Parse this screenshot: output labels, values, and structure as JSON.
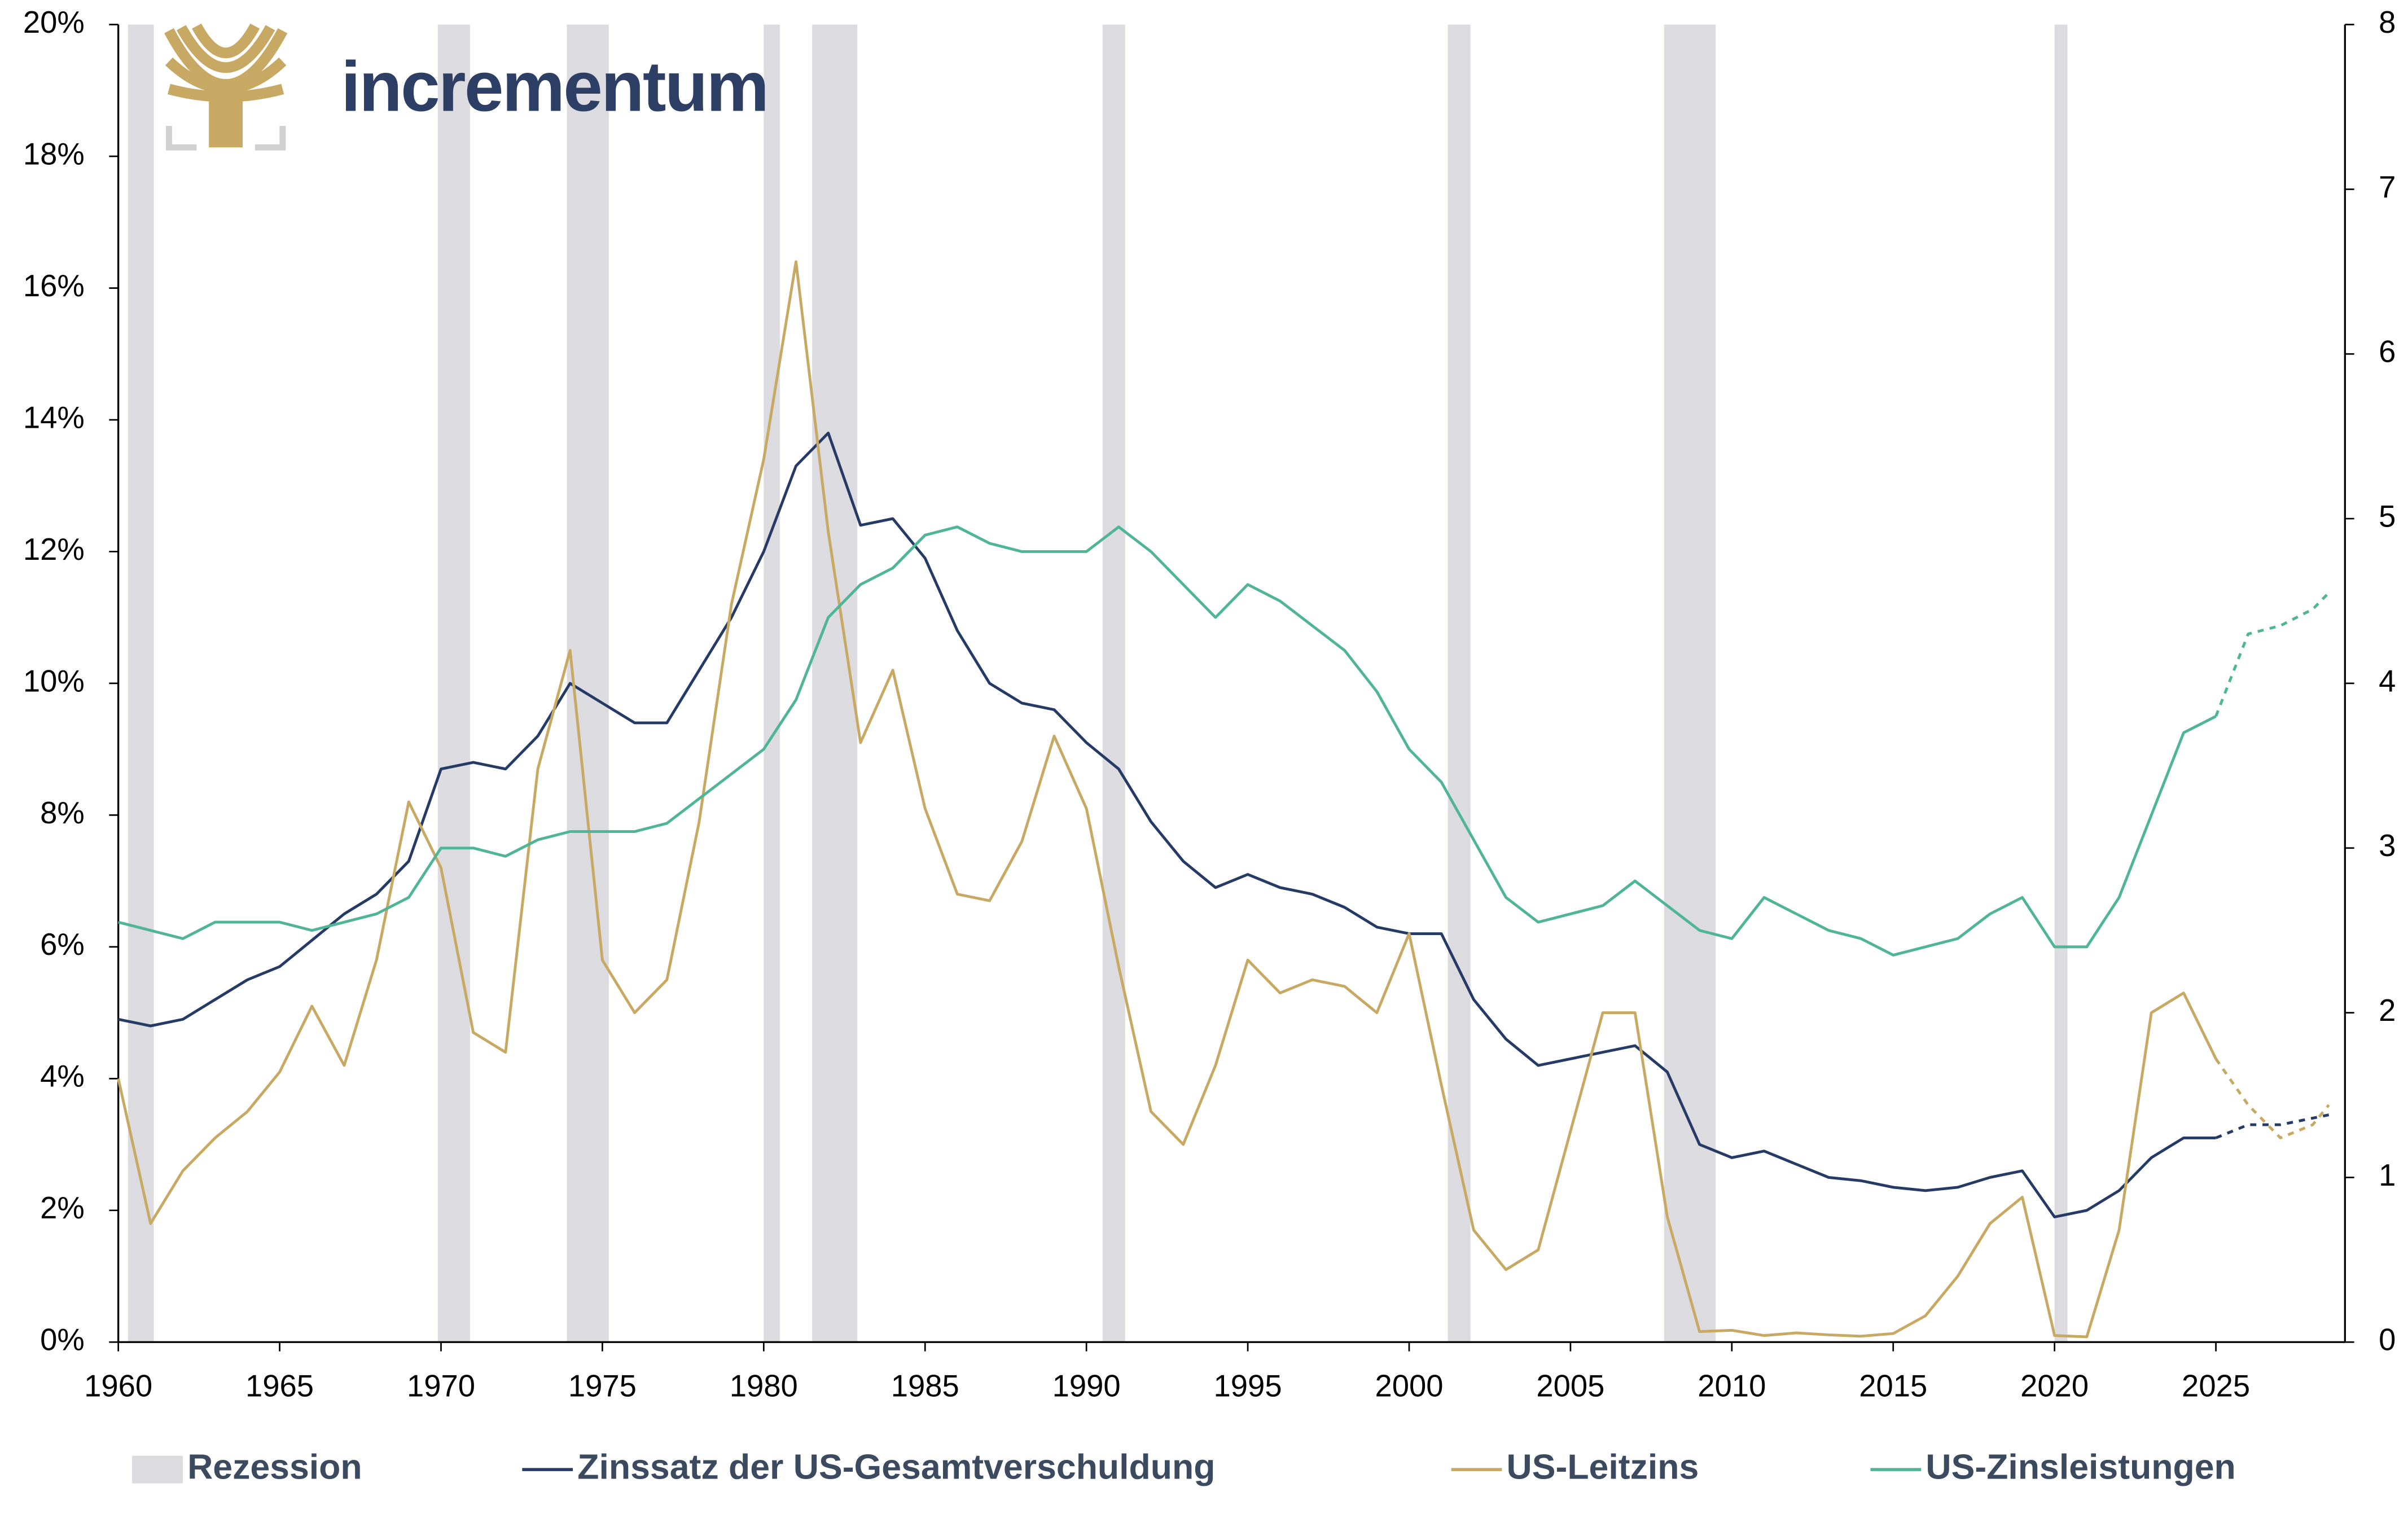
{
  "logo": {
    "text": "incrementum"
  },
  "chart_data": {
    "type": "line",
    "x": [
      1960,
      1961,
      1962,
      1963,
      1964,
      1965,
      1966,
      1967,
      1968,
      1969,
      1970,
      1971,
      1972,
      1973,
      1974,
      1975,
      1976,
      1977,
      1978,
      1979,
      1980,
      1981,
      1982,
      1983,
      1984,
      1985,
      1986,
      1987,
      1988,
      1989,
      1990,
      1991,
      1992,
      1993,
      1994,
      1995,
      1996,
      1997,
      1998,
      1999,
      2000,
      2001,
      2002,
      2003,
      2004,
      2005,
      2006,
      2007,
      2008,
      2009,
      2010,
      2011,
      2012,
      2013,
      2014,
      2015,
      2016,
      2017,
      2018,
      2019,
      2020,
      2021,
      2022,
      2023,
      2024,
      2025,
      2026,
      2027,
      2028,
      2028.5
    ],
    "dash_from": 2025,
    "xlim": [
      1960,
      2029
    ],
    "xticks": [
      1960,
      1965,
      1970,
      1975,
      1980,
      1985,
      1990,
      1995,
      2000,
      2005,
      2010,
      2015,
      2020,
      2025
    ],
    "ylim": [
      0,
      20
    ],
    "yticks": [
      {
        "value": 0,
        "label": "0%"
      },
      {
        "value": 2,
        "label": "2%"
      },
      {
        "value": 4,
        "label": "4%"
      },
      {
        "value": 6,
        "label": "6%"
      },
      {
        "value": 8,
        "label": "8%"
      },
      {
        "value": 10,
        "label": "10%"
      },
      {
        "value": 12,
        "label": "12%"
      },
      {
        "value": 14,
        "label": "14%"
      },
      {
        "value": 16,
        "label": "16%"
      },
      {
        "value": 18,
        "label": "18%"
      },
      {
        "value": 20,
        "label": "20%"
      }
    ],
    "y2lim": [
      0,
      8
    ],
    "y2ticks": [
      0,
      1,
      2,
      3,
      4,
      5,
      6,
      7,
      8
    ],
    "recessions": {
      "name": "Rezession",
      "color": "#dcdbe0",
      "ranges": [
        [
          1960.3,
          1961.1
        ],
        [
          1969.9,
          1970.9
        ],
        [
          1973.9,
          1975.2
        ],
        [
          1980.0,
          1980.5
        ],
        [
          1981.5,
          1982.9
        ],
        [
          1990.5,
          1991.2
        ],
        [
          2001.2,
          2001.9
        ],
        [
          2007.9,
          2009.5
        ],
        [
          2020.0,
          2020.4
        ]
      ]
    },
    "series": [
      {
        "name": "Zinssatz der US-Gesamtverschuldung",
        "color": "#253a64",
        "values": [
          4.9,
          4.8,
          4.9,
          5.2,
          5.5,
          5.7,
          6.1,
          6.5,
          6.8,
          7.3,
          8.7,
          8.8,
          8.7,
          9.2,
          10.0,
          9.7,
          9.4,
          9.4,
          10.2,
          11.0,
          12.0,
          13.3,
          13.8,
          12.4,
          12.5,
          11.9,
          10.8,
          10.0,
          9.7,
          9.6,
          9.1,
          8.7,
          7.9,
          7.3,
          6.9,
          7.1,
          6.9,
          6.8,
          6.6,
          6.3,
          6.2,
          6.2,
          5.2,
          4.6,
          4.2,
          4.3,
          4.4,
          4.5,
          4.1,
          3.0,
          2.8,
          2.9,
          2.7,
          2.5,
          2.45,
          2.35,
          2.3,
          2.35,
          2.5,
          2.6,
          1.9,
          2.0,
          2.3,
          2.8,
          3.1,
          3.1,
          3.3,
          3.3,
          3.4,
          3.45
        ]
      },
      {
        "name": "US-Leitzins",
        "color": "#c8a964",
        "values": [
          4.0,
          1.8,
          2.6,
          3.1,
          3.5,
          4.1,
          5.1,
          4.2,
          5.8,
          8.2,
          7.2,
          4.7,
          4.4,
          8.7,
          10.5,
          5.8,
          5.0,
          5.5,
          7.9,
          11.2,
          13.4,
          16.4,
          12.3,
          9.1,
          10.2,
          8.1,
          6.8,
          6.7,
          7.6,
          9.2,
          8.1,
          5.7,
          3.5,
          3.0,
          4.2,
          5.8,
          5.3,
          5.5,
          5.4,
          5.0,
          6.2,
          3.9,
          1.7,
          1.1,
          1.4,
          3.2,
          5.0,
          5.0,
          1.9,
          0.16,
          0.18,
          0.1,
          0.14,
          0.11,
          0.09,
          0.13,
          0.4,
          1.0,
          1.8,
          2.2,
          0.1,
          0.08,
          1.7,
          5.0,
          5.3,
          4.3,
          3.6,
          3.1,
          3.3,
          3.6
        ]
      },
      {
        "name": "US-Zinsleistungen",
        "color": "#4fb596",
        "axis": "y2",
        "values": [
          2.55,
          2.5,
          2.45,
          2.55,
          2.55,
          2.55,
          2.5,
          2.55,
          2.6,
          2.7,
          3.0,
          3.0,
          2.95,
          3.05,
          3.1,
          3.1,
          3.1,
          3.15,
          3.3,
          3.45,
          3.6,
          3.9,
          4.4,
          4.6,
          4.7,
          4.9,
          4.95,
          4.85,
          4.8,
          4.8,
          4.8,
          4.95,
          4.8,
          4.6,
          4.4,
          4.6,
          4.5,
          4.35,
          4.2,
          3.95,
          3.6,
          3.4,
          3.05,
          2.7,
          2.55,
          2.6,
          2.65,
          2.8,
          2.65,
          2.5,
          2.45,
          2.7,
          2.6,
          2.5,
          2.45,
          2.35,
          2.4,
          2.45,
          2.6,
          2.7,
          2.4,
          2.4,
          2.7,
          3.2,
          3.7,
          3.8,
          4.3,
          4.35,
          4.45,
          4.55
        ]
      }
    ]
  }
}
